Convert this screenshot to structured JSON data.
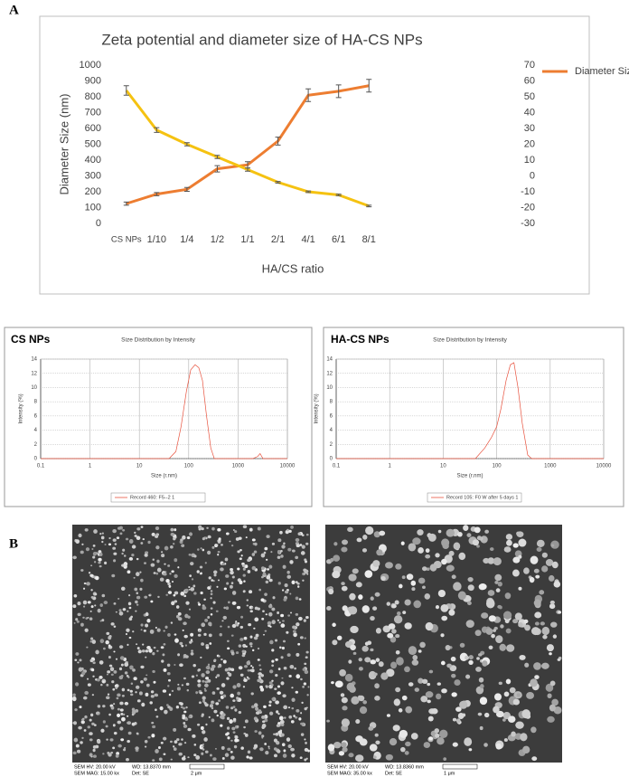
{
  "panel_labels": [
    "A",
    "B"
  ],
  "chart_data": [
    {
      "type": "line",
      "title": "Zeta potential and diameter size of HA-CS NPs",
      "x_label": "HA/CS ratio",
      "y_label": "Diameter Size (nm)",
      "categories": [
        "CS NPs",
        "1/10",
        "1/4",
        "1/2",
        "1/1",
        "2/1",
        "4/1",
        "6/1",
        "8/1"
      ],
      "ylim": [
        0,
        1000
      ],
      "yticks": [
        0,
        100,
        200,
        300,
        400,
        500,
        600,
        700,
        800,
        900,
        1000
      ],
      "y2lim": [
        -30,
        70
      ],
      "y2ticks": [
        -30,
        -20,
        -10,
        0,
        10,
        20,
        30,
        40,
        50,
        60,
        70
      ],
      "legend": "right",
      "series": [
        {
          "name": "Diameter Size (nm)",
          "color": "#ed7d31",
          "values": [
            125,
            185,
            215,
            345,
            370,
            520,
            810,
            835,
            870
          ],
          "errors": [
            10,
            10,
            12,
            20,
            20,
            25,
            40,
            40,
            40
          ]
        },
        {
          "color": "#f5c211",
          "axis": "y2",
          "values": [
            54,
            29,
            20,
            12,
            4,
            -4,
            -10,
            -12,
            -19
          ],
          "errors": [
            3,
            1.5,
            1,
            1,
            1,
            0.5,
            0.5,
            0.5,
            0.5
          ]
        }
      ]
    },
    {
      "type": "line",
      "panel_title": "CS NPs",
      "title": "Size Distribution by Intensity",
      "x_label": "Size (r.nm)",
      "y_label": "Intensity (%)",
      "xscale": "log",
      "xlim": [
        0.1,
        10000
      ],
      "xticks": [
        0.1,
        1,
        10,
        100,
        1000,
        10000
      ],
      "ylim": [
        0,
        14
      ],
      "yticks": [
        0,
        2,
        4,
        6,
        8,
        10,
        12,
        14
      ],
      "grid": true,
      "x": [
        0.1,
        40,
        55,
        70,
        90,
        110,
        135,
        160,
        190,
        230,
        280,
        330,
        2000,
        2500,
        2800,
        3200,
        10000
      ],
      "series": [
        {
          "name": "Record 460: F5--2 1",
          "color": "#e8533f",
          "values": [
            0,
            0,
            1,
            4.5,
            9.5,
            12.5,
            13.2,
            12.8,
            11,
            6,
            1.5,
            0,
            0,
            0.3,
            0.7,
            0,
            0
          ]
        }
      ]
    },
    {
      "type": "line",
      "panel_title": "HA-CS NPs",
      "title": "Size Distribution by Intensity",
      "x_label": "Size (r.nm)",
      "y_label": "Intensity (%)",
      "xscale": "log",
      "xlim": [
        0.1,
        10000
      ],
      "xticks": [
        0.1,
        1,
        10,
        100,
        1000,
        10000
      ],
      "ylim": [
        0,
        14
      ],
      "yticks": [
        0,
        2,
        4,
        6,
        8,
        10,
        12,
        14
      ],
      "grid": true,
      "x": [
        0.1,
        40,
        60,
        80,
        100,
        120,
        150,
        180,
        210,
        250,
        300,
        380,
        450,
        10000
      ],
      "series": [
        {
          "name": "Record 105: F0 W after 5 days 1",
          "color": "#e8533f",
          "values": [
            0,
            0,
            1.5,
            3,
            4.5,
            7,
            11,
            13.2,
            13.5,
            10,
            5,
            0.5,
            0,
            0
          ]
        }
      ]
    }
  ],
  "sem_images": [
    {
      "info": [
        "SEM HV: 20.00 kV",
        "WD: 13.8370 mm",
        "SEM MAG: 15.00 kx",
        "Det: SE"
      ],
      "scale_bar": "2 μm"
    },
    {
      "info": [
        "SEM HV: 20.00 kV",
        "WD: 13.8360 mm",
        "SEM MAG: 35.00 kx",
        "Det: SE"
      ],
      "scale_bar": "1 μm"
    }
  ]
}
